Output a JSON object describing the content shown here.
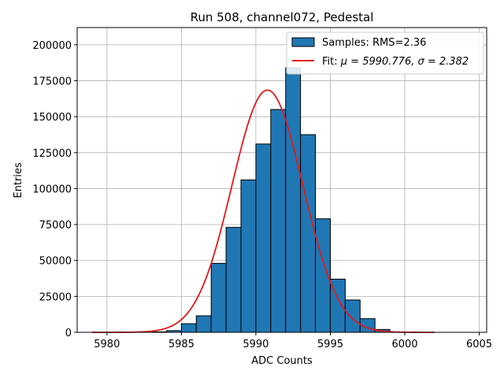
{
  "chart_data": {
    "type": "bar",
    "title": "Run 508, channel072, Pedestal",
    "xlabel": "ADC Counts",
    "ylabel": "Entries",
    "xlim": [
      5978,
      6005.5
    ],
    "ylim": [
      0,
      212000
    ],
    "xticks": [
      5980,
      5985,
      5990,
      5995,
      6000,
      6005
    ],
    "yticks": [
      0,
      25000,
      50000,
      75000,
      100000,
      125000,
      150000,
      175000,
      200000
    ],
    "grid": true,
    "legend_position": "top-right",
    "histogram": {
      "name": "Samples: RMS=2.36",
      "color": "#1f77b4",
      "edge_color": "#000000",
      "bin_left_edges": [
        5983,
        5984,
        5985,
        5986,
        5987,
        5988,
        5989,
        5990,
        5991,
        5992,
        5993,
        5994,
        5995,
        5996,
        5997,
        5998
      ],
      "bin_width": 1,
      "values": [
        300,
        1200,
        6000,
        11500,
        48000,
        73000,
        106000,
        131000,
        155000,
        184000,
        137500,
        79000,
        37000,
        22500,
        9500,
        2000
      ]
    },
    "fit": {
      "name_prefix": "Fit: ",
      "name_math": "μ = 5990.776, σ = 2.382",
      "color": "#e31a1c",
      "mu": 5990.776,
      "sigma": 2.382,
      "amplitude": 168500,
      "x_range": [
        5979,
        6002
      ]
    }
  }
}
